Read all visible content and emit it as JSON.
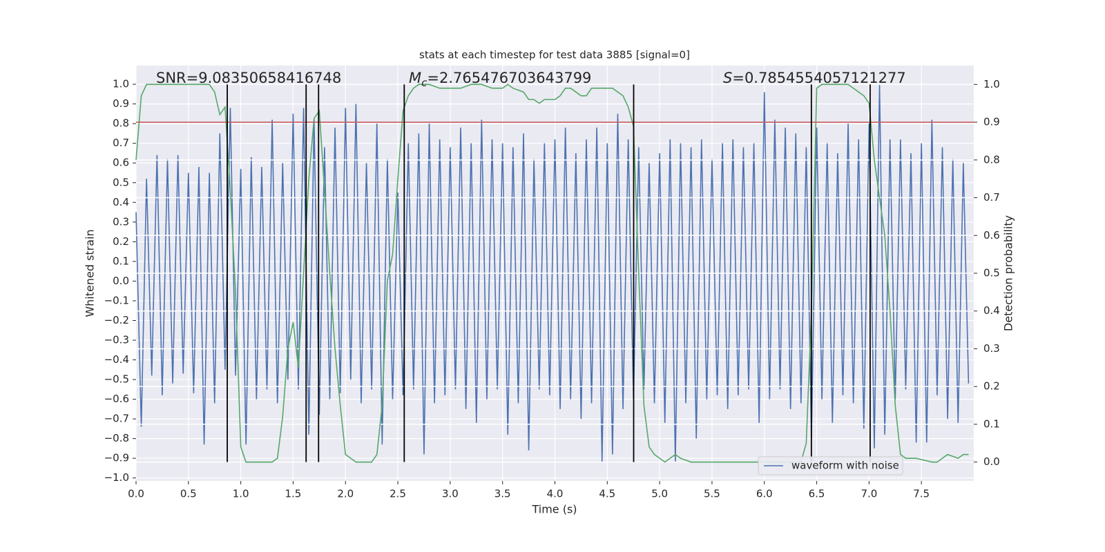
{
  "chart_data": {
    "type": "line",
    "title": "stats at each timestep for test data 3885 [signal=0]",
    "xlabel": "Time (s)",
    "ylabel": "Whitened strain",
    "y2label": "Detection probability",
    "xlim": [
      0,
      8.0
    ],
    "ylim": [
      -1.015,
      1.095
    ],
    "y2lim": [
      -0.05,
      1.05
    ],
    "grid": true,
    "legend": "lower right",
    "xticks": [
      {
        "value": 0,
        "label": "0.0"
      },
      {
        "value": 0.5,
        "label": "0.5"
      },
      {
        "value": 1,
        "label": "1.0"
      },
      {
        "value": 1.5,
        "label": "1.5"
      },
      {
        "value": 2,
        "label": "2.0"
      },
      {
        "value": 2.5,
        "label": "2.5"
      },
      {
        "value": 3,
        "label": "3.0"
      },
      {
        "value": 3.5,
        "label": "3.5"
      },
      {
        "value": 4,
        "label": "4.0"
      },
      {
        "value": 4.5,
        "label": "4.5"
      },
      {
        "value": 5,
        "label": "5.0"
      },
      {
        "value": 5.5,
        "label": "5.5"
      },
      {
        "value": 6,
        "label": "6.0"
      },
      {
        "value": 6.5,
        "label": "6.5"
      },
      {
        "value": 7,
        "label": "7.0"
      },
      {
        "value": 7.5,
        "label": "7.5"
      }
    ],
    "yticks": [
      {
        "value": -1,
        "label": "−1.0"
      },
      {
        "value": -0.9,
        "label": "−0.9"
      },
      {
        "value": -0.8,
        "label": "−0.8"
      },
      {
        "value": -0.7,
        "label": "−0.7"
      },
      {
        "value": -0.6,
        "label": "−0.6"
      },
      {
        "value": -0.5,
        "label": "−0.5"
      },
      {
        "value": -0.4,
        "label": "−0.4"
      },
      {
        "value": -0.3,
        "label": "−0.3"
      },
      {
        "value": -0.2,
        "label": "−0.2"
      },
      {
        "value": -0.1,
        "label": "−0.1"
      },
      {
        "value": 0,
        "label": "0.0"
      },
      {
        "value": 0.1,
        "label": "0.1"
      },
      {
        "value": 0.2,
        "label": "0.2"
      },
      {
        "value": 0.3,
        "label": "0.3"
      },
      {
        "value": 0.4,
        "label": "0.4"
      },
      {
        "value": 0.5,
        "label": "0.5"
      },
      {
        "value": 0.6,
        "label": "0.6"
      },
      {
        "value": 0.7,
        "label": "0.7"
      },
      {
        "value": 0.8,
        "label": "0.8"
      },
      {
        "value": 0.9,
        "label": "0.9"
      },
      {
        "value": 1,
        "label": "1.0"
      }
    ],
    "y2ticks": [
      {
        "value": 0,
        "label": "0.0"
      },
      {
        "value": 0.1,
        "label": "0.1"
      },
      {
        "value": 0.2,
        "label": "0.2"
      },
      {
        "value": 0.3,
        "label": "0.3"
      },
      {
        "value": 0.4,
        "label": "0.4"
      },
      {
        "value": 0.5,
        "label": "0.5"
      },
      {
        "value": 0.6,
        "label": "0.6"
      },
      {
        "value": 0.7,
        "label": "0.7"
      },
      {
        "value": 0.8,
        "label": "0.8"
      },
      {
        "value": 0.9,
        "label": "0.9"
      },
      {
        "value": 1,
        "label": "1.0"
      }
    ],
    "series": [
      {
        "name": "waveform with noise",
        "color": "#4c72b0",
        "x": [
          0,
          0.05,
          0.1,
          0.15,
          0.2,
          0.25,
          0.3,
          0.35,
          0.4,
          0.45,
          0.5,
          0.55,
          0.6,
          0.65,
          0.7,
          0.75,
          0.8,
          0.85,
          0.9,
          0.95,
          1,
          1.05,
          1.1,
          1.15,
          1.2,
          1.25,
          1.3,
          1.35,
          1.4,
          1.45,
          1.5,
          1.55,
          1.6,
          1.65,
          1.7,
          1.75,
          1.8,
          1.85,
          1.9,
          1.95,
          2,
          2.05,
          2.1,
          2.15,
          2.2,
          2.25,
          2.3,
          2.35,
          2.4,
          2.45,
          2.5,
          2.55,
          2.6,
          2.65,
          2.7,
          2.75,
          2.8,
          2.85,
          2.9,
          2.95,
          3,
          3.05,
          3.1,
          3.15,
          3.2,
          3.25,
          3.3,
          3.35,
          3.4,
          3.45,
          3.5,
          3.55,
          3.6,
          3.65,
          3.7,
          3.75,
          3.8,
          3.85,
          3.9,
          3.95,
          4,
          4.05,
          4.1,
          4.15,
          4.2,
          4.25,
          4.3,
          4.35,
          4.4,
          4.45,
          4.5,
          4.55,
          4.6,
          4.65,
          4.7,
          4.75,
          4.8,
          4.85,
          4.9,
          4.95,
          5,
          5.05,
          5.1,
          5.15,
          5.2,
          5.25,
          5.3,
          5.35,
          5.4,
          5.45,
          5.5,
          5.55,
          5.6,
          5.65,
          5.7,
          5.75,
          5.8,
          5.85,
          5.9,
          5.95,
          6,
          6.05,
          6.1,
          6.15,
          6.2,
          6.25,
          6.3,
          6.35,
          6.4,
          6.45,
          6.5,
          6.55,
          6.6,
          6.65,
          6.7,
          6.75,
          6.8,
          6.85,
          6.9,
          6.95,
          7,
          7.05,
          7.1,
          7.15,
          7.2,
          7.25,
          7.3,
          7.35,
          7.4,
          7.45,
          7.5,
          7.55,
          7.6,
          7.65,
          7.7,
          7.75,
          7.8,
          7.85,
          7.9,
          7.95
        ],
        "values": [
          0.35,
          -0.74,
          0.52,
          -0.48,
          0.64,
          -0.58,
          0.62,
          -0.52,
          0.64,
          -0.47,
          0.55,
          -0.57,
          0.58,
          -0.83,
          0.55,
          -0.62,
          0.75,
          -0.45,
          0.88,
          -0.48,
          0.57,
          -0.83,
          0.63,
          -0.6,
          0.58,
          -0.55,
          0.82,
          -0.62,
          0.6,
          -0.5,
          0.85,
          -0.55,
          0.88,
          -0.78,
          0.82,
          -0.68,
          0.68,
          -0.6,
          0.78,
          -0.57,
          0.88,
          -0.5,
          0.9,
          -0.62,
          0.6,
          -0.55,
          0.8,
          -0.83,
          0.62,
          -0.6,
          0.45,
          -0.58,
          0.7,
          -0.55,
          0.75,
          -0.88,
          0.8,
          -0.62,
          0.72,
          -0.58,
          0.68,
          -0.55,
          0.78,
          -0.65,
          0.7,
          -0.72,
          0.82,
          -0.6,
          0.72,
          -0.55,
          0.7,
          -0.78,
          0.68,
          -0.62,
          0.75,
          -0.86,
          0.62,
          -0.55,
          0.7,
          -0.58,
          0.72,
          -0.65,
          0.78,
          -0.6,
          0.65,
          -0.7,
          0.72,
          -0.62,
          0.78,
          -0.92,
          0.7,
          -0.88,
          0.85,
          -0.65,
          0.72,
          -0.6,
          0.68,
          -0.55,
          0.6,
          -0.62,
          0.65,
          -0.72,
          0.72,
          -0.92,
          0.7,
          -0.62,
          0.68,
          -0.8,
          0.72,
          -0.6,
          0.62,
          -0.58,
          0.7,
          -0.65,
          0.72,
          -0.58,
          0.68,
          -0.55,
          0.7,
          -0.72,
          0.96,
          -0.6,
          0.82,
          -0.55,
          0.78,
          -0.65,
          0.75,
          -0.62,
          0.68,
          -0.8,
          0.78,
          -0.6,
          0.7,
          -0.72,
          0.65,
          -0.58,
          0.8,
          -0.62,
          0.72,
          -0.75,
          0.8,
          -0.85,
          1.0,
          -0.78,
          0.72,
          -0.6,
          0.72,
          -0.55,
          0.65,
          -0.82,
          0.7,
          -0.82,
          0.82,
          -0.58,
          0.68,
          -0.7,
          0.62,
          -0.72,
          0.6,
          -0.52
        ]
      },
      {
        "color": "#55a868",
        "axis": "y2",
        "x": [
          0,
          0.05,
          0.1,
          0.2,
          0.3,
          0.4,
          0.5,
          0.6,
          0.7,
          0.75,
          0.8,
          0.85,
          0.9,
          0.95,
          1,
          1.05,
          1.1,
          1.2,
          1.3,
          1.35,
          1.4,
          1.45,
          1.5,
          1.55,
          1.6,
          1.65,
          1.7,
          1.75,
          1.8,
          1.85,
          1.9,
          1.95,
          2,
          2.05,
          2.1,
          2.2,
          2.25,
          2.3,
          2.35,
          2.4,
          2.45,
          2.5,
          2.55,
          2.6,
          2.65,
          2.7,
          2.8,
          2.9,
          3,
          3.1,
          3.2,
          3.3,
          3.4,
          3.5,
          3.55,
          3.6,
          3.7,
          3.75,
          3.8,
          3.85,
          3.9,
          4,
          4.05,
          4.1,
          4.15,
          4.2,
          4.25,
          4.3,
          4.35,
          4.4,
          4.5,
          4.55,
          4.6,
          4.65,
          4.7,
          4.75,
          4.8,
          4.85,
          4.9,
          4.95,
          5,
          5.05,
          5.1,
          5.15,
          5.2,
          5.3,
          5.5,
          5.7,
          6,
          6.2,
          6.35,
          6.4,
          6.45,
          6.5,
          6.55,
          6.6,
          6.7,
          6.8,
          6.85,
          6.9,
          6.95,
          7,
          7.05,
          7.1,
          7.15,
          7.2,
          7.25,
          7.3,
          7.35,
          7.45,
          7.6,
          7.65,
          7.7,
          7.75,
          7.8,
          7.85,
          7.9,
          7.95
        ],
        "values": [
          0.8,
          0.97,
          1,
          1,
          1,
          1,
          1,
          1,
          1,
          0.98,
          0.92,
          0.94,
          0.72,
          0.45,
          0.04,
          0,
          0,
          0,
          0,
          0.01,
          0.12,
          0.3,
          0.37,
          0.25,
          0.5,
          0.75,
          0.91,
          0.93,
          0.72,
          0.5,
          0.3,
          0.15,
          0.02,
          0.01,
          0,
          0,
          0,
          0.02,
          0.15,
          0.48,
          0.55,
          0.75,
          0.93,
          0.97,
          0.99,
          1,
          1,
          0.99,
          0.99,
          0.99,
          1,
          1,
          0.99,
          0.99,
          1,
          0.99,
          0.98,
          0.96,
          0.96,
          0.95,
          0.96,
          0.96,
          0.97,
          0.99,
          0.99,
          0.98,
          0.97,
          0.97,
          0.99,
          0.99,
          0.99,
          0.99,
          0.98,
          0.97,
          0.94,
          0.89,
          0.5,
          0.15,
          0.04,
          0.02,
          0.01,
          0,
          0.01,
          0.02,
          0.01,
          0,
          0,
          0,
          0,
          0,
          0,
          0.05,
          0.4,
          0.99,
          1,
          1,
          1,
          1,
          0.99,
          0.98,
          0.97,
          0.95,
          0.8,
          0.7,
          0.6,
          0.4,
          0.15,
          0.02,
          0.01,
          0.01,
          0,
          0,
          0.01,
          0.02,
          0.015,
          0.01,
          0.02,
          0.02
        ]
      }
    ],
    "hline": {
      "value": 0.9,
      "axis": "y2",
      "color": "#c44e52"
    },
    "vlines": {
      "x": [
        0.871,
        1.624,
        1.743,
        2.561,
        4.752,
        6.449,
        7.01
      ],
      "ymin": 0,
      "ymax": 1,
      "axis": "y2",
      "color": "#000000"
    },
    "annotations": [
      {
        "text": "SNR=9.08350658416748"
      },
      {
        "symbol": "M",
        "subscript": "c",
        "text": "=2.765476703643799"
      },
      {
        "symbol": "S",
        "text": "=0.7854554057121277"
      }
    ]
  }
}
